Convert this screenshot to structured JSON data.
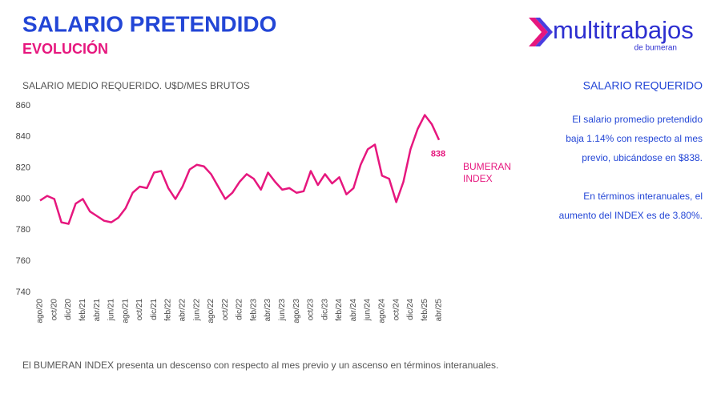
{
  "header": {
    "title": "SALARIO PRETENDIDO",
    "subtitle": "EVOLUCIÓN"
  },
  "logo": {
    "name": "multitrabajos",
    "tagline": "de bumeran"
  },
  "chart_data": {
    "type": "line",
    "title": "SALARIO MEDIO REQUERIDO. U$D/MES BRUTOS",
    "categories": [
      "ago/20",
      null,
      "oct/20",
      null,
      "dic/20",
      null,
      "feb/21",
      null,
      "abr/21",
      null,
      "jun/21",
      null,
      "ago/21",
      null,
      "oct/21",
      null,
      "dic/21",
      null,
      "feb/22",
      null,
      "abr/22",
      null,
      "jun/22",
      null,
      "ago/22",
      null,
      "oct/22",
      null,
      "dic/22",
      null,
      "feb/23",
      null,
      "abr/23",
      null,
      "jun/23",
      null,
      "ago/23",
      null,
      "oct/23",
      null,
      "dic/23",
      null,
      "feb/24",
      null,
      "abr/24",
      null,
      "jun/24",
      null,
      "ago/24",
      null,
      "oct/24",
      null,
      "dic/24",
      null,
      "feb/25",
      null,
      "abr/25"
    ],
    "series": [
      {
        "name": "BUMERAN INDEX",
        "color": "#e6177e",
        "values": [
          799,
          802,
          800,
          785,
          784,
          797,
          800,
          792,
          789,
          786,
          785,
          788,
          794,
          804,
          808,
          807,
          817,
          818,
          807,
          800,
          808,
          819,
          822,
          821,
          816,
          808,
          800,
          804,
          811,
          816,
          813,
          806,
          817,
          811,
          806,
          807,
          804,
          805,
          818,
          809,
          816,
          810,
          814,
          803,
          807,
          822,
          832,
          835,
          815,
          813,
          798,
          811,
          832,
          845,
          854,
          848,
          838
        ],
        "value_labels": [
          null,
          null,
          null,
          null,
          null,
          null,
          null,
          null,
          null,
          null,
          null,
          null,
          null,
          null,
          null,
          null,
          null,
          null,
          null,
          null,
          null,
          null,
          null,
          null,
          null,
          null,
          null,
          null,
          null,
          null,
          null,
          null,
          null,
          null,
          null,
          null,
          null,
          null,
          null,
          null,
          null,
          null,
          null,
          null,
          null,
          null,
          null,
          null,
          null,
          null,
          null,
          null,
          null,
          null,
          null,
          null,
          "838"
        ]
      }
    ],
    "ylim": [
      740,
      860
    ],
    "yticks": [
      740,
      760,
      780,
      800,
      820,
      840,
      860
    ],
    "grid": false
  },
  "sidebar": {
    "heading": "SALARIO REQUERIDO",
    "paragraphs": [
      [
        "El salario promedio pretendido",
        "baja 1.14% con respecto al mes",
        "previo, ubicándose en $838."
      ],
      [
        "En términos interanuales, el",
        "aumento del INDEX es de 3.80%."
      ]
    ]
  },
  "footnote": "El BUMERAN INDEX presenta un descenso con respecto al mes previo y un ascenso en términos interanuales."
}
